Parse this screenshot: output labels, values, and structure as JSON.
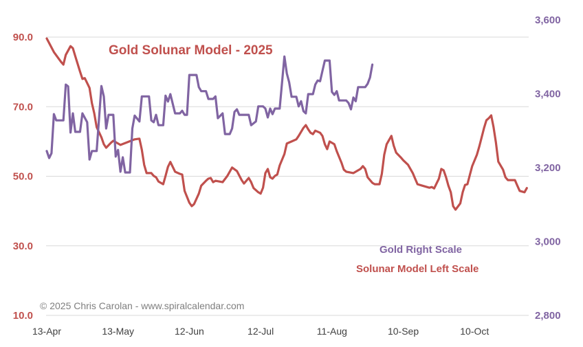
{
  "chart_data": {
    "type": "line",
    "title": "Gold Solunar Model - 2025",
    "copyright": "© 2025 Chris Carolan - www.spiralcalendar.com",
    "x_tick_labels": [
      "13-Apr",
      "13-May",
      "12-Jun",
      "12-Jul",
      "11-Aug",
      "10-Sep",
      "10-Oct"
    ],
    "x_ticks": [
      "2025-04-13",
      "2025-05-13",
      "2025-06-12",
      "2025-07-12",
      "2025-08-11",
      "2025-09-10",
      "2025-10-10"
    ],
    "xlim": [
      "2025-04-13",
      "2025-11-01"
    ],
    "grid": true,
    "left_axis": {
      "ylim": [
        10,
        90
      ],
      "tick_labels": [
        "90.0",
        "70.0",
        "50.0",
        "30.0",
        "10.0"
      ],
      "ticks": [
        90,
        70,
        50,
        30,
        10
      ],
      "color": "#c0504d"
    },
    "right_axis": {
      "ylim": [
        2800,
        3600
      ],
      "tick_labels": [
        "3,600",
        "3,400",
        "3,200",
        "3,000",
        "2,800"
      ],
      "ticks": [
        3600,
        3400,
        3200,
        3000,
        2800
      ],
      "color": "#8064a2"
    },
    "legend": [
      "Gold Right Scale",
      "Solunar Model Left Scale"
    ],
    "series": [
      {
        "name": "Solunar Model Left Scale",
        "axis": "left",
        "color": "#c0504d",
        "points": [
          [
            "2025-04-13",
            89.6
          ],
          [
            "2025-04-16",
            85.7
          ],
          [
            "2025-04-19",
            82.9
          ],
          [
            "2025-04-20",
            82.1
          ],
          [
            "2025-04-21",
            84.9
          ],
          [
            "2025-04-23",
            87.4
          ],
          [
            "2025-04-24",
            86.8
          ],
          [
            "2025-04-25",
            84.5
          ],
          [
            "2025-04-27",
            80.1
          ],
          [
            "2025-04-28",
            78.0
          ],
          [
            "2025-04-29",
            78.2
          ],
          [
            "2025-05-01",
            75.4
          ],
          [
            "2025-05-02",
            71.0
          ],
          [
            "2025-05-03",
            68.1
          ],
          [
            "2025-05-04",
            64.1
          ],
          [
            "2025-05-06",
            61.2
          ],
          [
            "2025-05-07",
            59.2
          ],
          [
            "2025-05-08",
            58.2
          ],
          [
            "2025-05-10",
            59.6
          ],
          [
            "2025-05-11",
            60.2
          ],
          [
            "2025-05-14",
            59.0
          ],
          [
            "2025-05-17",
            59.8
          ],
          [
            "2025-05-20",
            60.6
          ],
          [
            "2025-05-22",
            60.8
          ],
          [
            "2025-05-23",
            57.6
          ],
          [
            "2025-05-24",
            53.3
          ],
          [
            "2025-05-25",
            50.9
          ],
          [
            "2025-05-27",
            50.9
          ],
          [
            "2025-05-28",
            50.1
          ],
          [
            "2025-05-29",
            49.7
          ],
          [
            "2025-05-30",
            48.5
          ],
          [
            "2025-06-01",
            47.7
          ],
          [
            "2025-06-02",
            50.1
          ],
          [
            "2025-06-03",
            52.7
          ],
          [
            "2025-06-04",
            54.1
          ],
          [
            "2025-06-06",
            51.3
          ],
          [
            "2025-06-08",
            50.7
          ],
          [
            "2025-06-09",
            50.5
          ],
          [
            "2025-06-10",
            45.8
          ],
          [
            "2025-06-12",
            42.4
          ],
          [
            "2025-06-13",
            41.4
          ],
          [
            "2025-06-14",
            42.0
          ],
          [
            "2025-06-16",
            45.0
          ],
          [
            "2025-06-17",
            47.3
          ],
          [
            "2025-06-19",
            48.7
          ],
          [
            "2025-06-20",
            49.3
          ],
          [
            "2025-06-21",
            49.5
          ],
          [
            "2025-06-22",
            48.3
          ],
          [
            "2025-06-23",
            48.7
          ],
          [
            "2025-06-26",
            48.3
          ],
          [
            "2025-06-28",
            50.1
          ],
          [
            "2025-06-30",
            52.5
          ],
          [
            "2025-07-02",
            51.5
          ],
          [
            "2025-07-04",
            48.9
          ],
          [
            "2025-07-05",
            47.9
          ],
          [
            "2025-07-07",
            49.5
          ],
          [
            "2025-07-08",
            48.3
          ],
          [
            "2025-07-09",
            46.6
          ],
          [
            "2025-07-11",
            45.4
          ],
          [
            "2025-07-12",
            45.0
          ],
          [
            "2025-07-13",
            46.7
          ],
          [
            "2025-07-14",
            50.9
          ],
          [
            "2025-07-15",
            52.1
          ],
          [
            "2025-07-16",
            49.7
          ],
          [
            "2025-07-17",
            49.3
          ],
          [
            "2025-07-18",
            50.1
          ],
          [
            "2025-07-19",
            50.5
          ],
          [
            "2025-07-20",
            53.1
          ],
          [
            "2025-07-22",
            56.4
          ],
          [
            "2025-07-23",
            59.4
          ],
          [
            "2025-07-25",
            60.0
          ],
          [
            "2025-07-27",
            60.6
          ],
          [
            "2025-07-28",
            61.6
          ],
          [
            "2025-07-30",
            63.9
          ],
          [
            "2025-07-31",
            64.7
          ],
          [
            "2025-08-01",
            63.5
          ],
          [
            "2025-08-02",
            62.5
          ],
          [
            "2025-08-03",
            62.1
          ],
          [
            "2025-08-04",
            63.1
          ],
          [
            "2025-08-06",
            62.5
          ],
          [
            "2025-08-07",
            61.6
          ],
          [
            "2025-08-08",
            59.2
          ],
          [
            "2025-08-09",
            57.8
          ],
          [
            "2025-08-10",
            60.0
          ],
          [
            "2025-08-12",
            59.2
          ],
          [
            "2025-08-13",
            57.2
          ],
          [
            "2025-08-15",
            53.9
          ],
          [
            "2025-08-16",
            51.9
          ],
          [
            "2025-08-17",
            51.3
          ],
          [
            "2025-08-20",
            50.9
          ],
          [
            "2025-08-23",
            52.1
          ],
          [
            "2025-08-24",
            52.9
          ],
          [
            "2025-08-25",
            52.1
          ],
          [
            "2025-08-26",
            49.7
          ],
          [
            "2025-08-28",
            48.1
          ],
          [
            "2025-08-29",
            47.7
          ],
          [
            "2025-08-31",
            47.7
          ],
          [
            "2025-09-01",
            50.7
          ],
          [
            "2025-09-02",
            56.2
          ],
          [
            "2025-09-03",
            59.2
          ],
          [
            "2025-09-05",
            61.6
          ],
          [
            "2025-09-06",
            58.8
          ],
          [
            "2025-09-07",
            56.8
          ],
          [
            "2025-09-09",
            55.4
          ],
          [
            "2025-09-10",
            54.6
          ],
          [
            "2025-09-12",
            53.3
          ],
          [
            "2025-09-14",
            50.9
          ],
          [
            "2025-09-15",
            49.3
          ],
          [
            "2025-09-16",
            47.7
          ],
          [
            "2025-09-18",
            47.3
          ],
          [
            "2025-09-21",
            46.7
          ],
          [
            "2025-09-22",
            46.9
          ],
          [
            "2025-09-23",
            46.5
          ],
          [
            "2025-09-25",
            49.3
          ],
          [
            "2025-09-26",
            52.1
          ],
          [
            "2025-09-27",
            51.7
          ],
          [
            "2025-09-28",
            49.7
          ],
          [
            "2025-09-29",
            47.3
          ],
          [
            "2025-09-30",
            45.4
          ],
          [
            "2025-10-01",
            41.4
          ],
          [
            "2025-10-02",
            40.4
          ],
          [
            "2025-10-04",
            42.2
          ],
          [
            "2025-10-05",
            45.4
          ],
          [
            "2025-10-06",
            47.5
          ],
          [
            "2025-10-07",
            47.7
          ],
          [
            "2025-10-08",
            50.3
          ],
          [
            "2025-10-09",
            52.9
          ],
          [
            "2025-10-11",
            56.2
          ],
          [
            "2025-10-12",
            58.6
          ],
          [
            "2025-10-13",
            61.2
          ],
          [
            "2025-10-14",
            63.9
          ],
          [
            "2025-10-15",
            66.1
          ],
          [
            "2025-10-16",
            66.7
          ],
          [
            "2025-10-17",
            67.5
          ],
          [
            "2025-10-18",
            64.1
          ],
          [
            "2025-10-19",
            59.6
          ],
          [
            "2025-10-20",
            54.2
          ],
          [
            "2025-10-22",
            51.9
          ],
          [
            "2025-10-23",
            49.7
          ],
          [
            "2025-10-24",
            48.9
          ],
          [
            "2025-10-27",
            48.9
          ],
          [
            "2025-10-28",
            47.3
          ],
          [
            "2025-10-29",
            45.8
          ],
          [
            "2025-10-31",
            45.4
          ],
          [
            "2025-11-01",
            46.6
          ]
        ]
      },
      {
        "name": "Gold Right Scale",
        "axis": "right",
        "color": "#8064a2",
        "points": [
          [
            "2025-04-13",
            3245
          ],
          [
            "2025-04-14",
            3226
          ],
          [
            "2025-04-15",
            3239
          ],
          [
            "2025-04-16",
            3345
          ],
          [
            "2025-04-17",
            3328
          ],
          [
            "2025-04-20",
            3328
          ],
          [
            "2025-04-21",
            3425
          ],
          [
            "2025-04-22",
            3420
          ],
          [
            "2025-04-23",
            3295
          ],
          [
            "2025-04-24",
            3347
          ],
          [
            "2025-04-25",
            3297
          ],
          [
            "2025-04-27",
            3297
          ],
          [
            "2025-04-28",
            3347
          ],
          [
            "2025-04-30",
            3323
          ],
          [
            "2025-05-01",
            3222
          ],
          [
            "2025-05-02",
            3245
          ],
          [
            "2025-05-04",
            3245
          ],
          [
            "2025-05-06",
            3421
          ],
          [
            "2025-05-07",
            3393
          ],
          [
            "2025-05-08",
            3306
          ],
          [
            "2025-05-09",
            3343
          ],
          [
            "2025-05-11",
            3343
          ],
          [
            "2025-05-12",
            3230
          ],
          [
            "2025-05-13",
            3248
          ],
          [
            "2025-05-14",
            3189
          ],
          [
            "2025-05-15",
            3228
          ],
          [
            "2025-05-16",
            3187
          ],
          [
            "2025-05-18",
            3187
          ],
          [
            "2025-05-19",
            3306
          ],
          [
            "2025-05-20",
            3341
          ],
          [
            "2025-05-22",
            3325
          ],
          [
            "2025-05-23",
            3393
          ],
          [
            "2025-05-26",
            3393
          ],
          [
            "2025-05-27",
            3328
          ],
          [
            "2025-05-28",
            3323
          ],
          [
            "2025-05-29",
            3343
          ],
          [
            "2025-05-30",
            3315
          ],
          [
            "2025-06-01",
            3315
          ],
          [
            "2025-06-02",
            3395
          ],
          [
            "2025-06-03",
            3379
          ],
          [
            "2025-06-04",
            3399
          ],
          [
            "2025-06-06",
            3347
          ],
          [
            "2025-06-08",
            3347
          ],
          [
            "2025-06-09",
            3354
          ],
          [
            "2025-06-10",
            3343
          ],
          [
            "2025-06-11",
            3343
          ],
          [
            "2025-06-12",
            3451
          ],
          [
            "2025-06-15",
            3451
          ],
          [
            "2025-06-16",
            3418
          ],
          [
            "2025-06-17",
            3407
          ],
          [
            "2025-06-19",
            3407
          ],
          [
            "2025-06-20",
            3386
          ],
          [
            "2025-06-22",
            3386
          ],
          [
            "2025-06-23",
            3393
          ],
          [
            "2025-06-24",
            3334
          ],
          [
            "2025-06-26",
            3347
          ],
          [
            "2025-06-27",
            3291
          ],
          [
            "2025-06-29",
            3291
          ],
          [
            "2025-06-30",
            3306
          ],
          [
            "2025-07-01",
            3351
          ],
          [
            "2025-07-02",
            3358
          ],
          [
            "2025-07-03",
            3343
          ],
          [
            "2025-07-07",
            3343
          ],
          [
            "2025-07-08",
            3315
          ],
          [
            "2025-07-10",
            3325
          ],
          [
            "2025-07-11",
            3366
          ],
          [
            "2025-07-13",
            3366
          ],
          [
            "2025-07-14",
            3360
          ],
          [
            "2025-07-15",
            3336
          ],
          [
            "2025-07-16",
            3360
          ],
          [
            "2025-07-17",
            3345
          ],
          [
            "2025-07-18",
            3360
          ],
          [
            "2025-07-20",
            3360
          ],
          [
            "2025-07-22",
            3501
          ],
          [
            "2025-07-23",
            3455
          ],
          [
            "2025-07-24",
            3431
          ],
          [
            "2025-07-25",
            3392
          ],
          [
            "2025-07-27",
            3392
          ],
          [
            "2025-07-28",
            3366
          ],
          [
            "2025-07-29",
            3380
          ],
          [
            "2025-07-30",
            3353
          ],
          [
            "2025-07-31",
            3347
          ],
          [
            "2025-08-01",
            3399
          ],
          [
            "2025-08-03",
            3399
          ],
          [
            "2025-08-04",
            3425
          ],
          [
            "2025-08-05",
            3436
          ],
          [
            "2025-08-06",
            3434
          ],
          [
            "2025-08-07",
            3462
          ],
          [
            "2025-08-08",
            3490
          ],
          [
            "2025-08-10",
            3490
          ],
          [
            "2025-08-11",
            3405
          ],
          [
            "2025-08-12",
            3397
          ],
          [
            "2025-08-13",
            3407
          ],
          [
            "2025-08-14",
            3382
          ],
          [
            "2025-08-17",
            3382
          ],
          [
            "2025-08-18",
            3375
          ],
          [
            "2025-08-19",
            3358
          ],
          [
            "2025-08-20",
            3390
          ],
          [
            "2025-08-21",
            3380
          ],
          [
            "2025-08-22",
            3418
          ],
          [
            "2025-08-25",
            3418
          ],
          [
            "2025-08-26",
            3427
          ],
          [
            "2025-08-27",
            3444
          ],
          [
            "2025-08-28",
            3479
          ]
        ]
      }
    ]
  }
}
